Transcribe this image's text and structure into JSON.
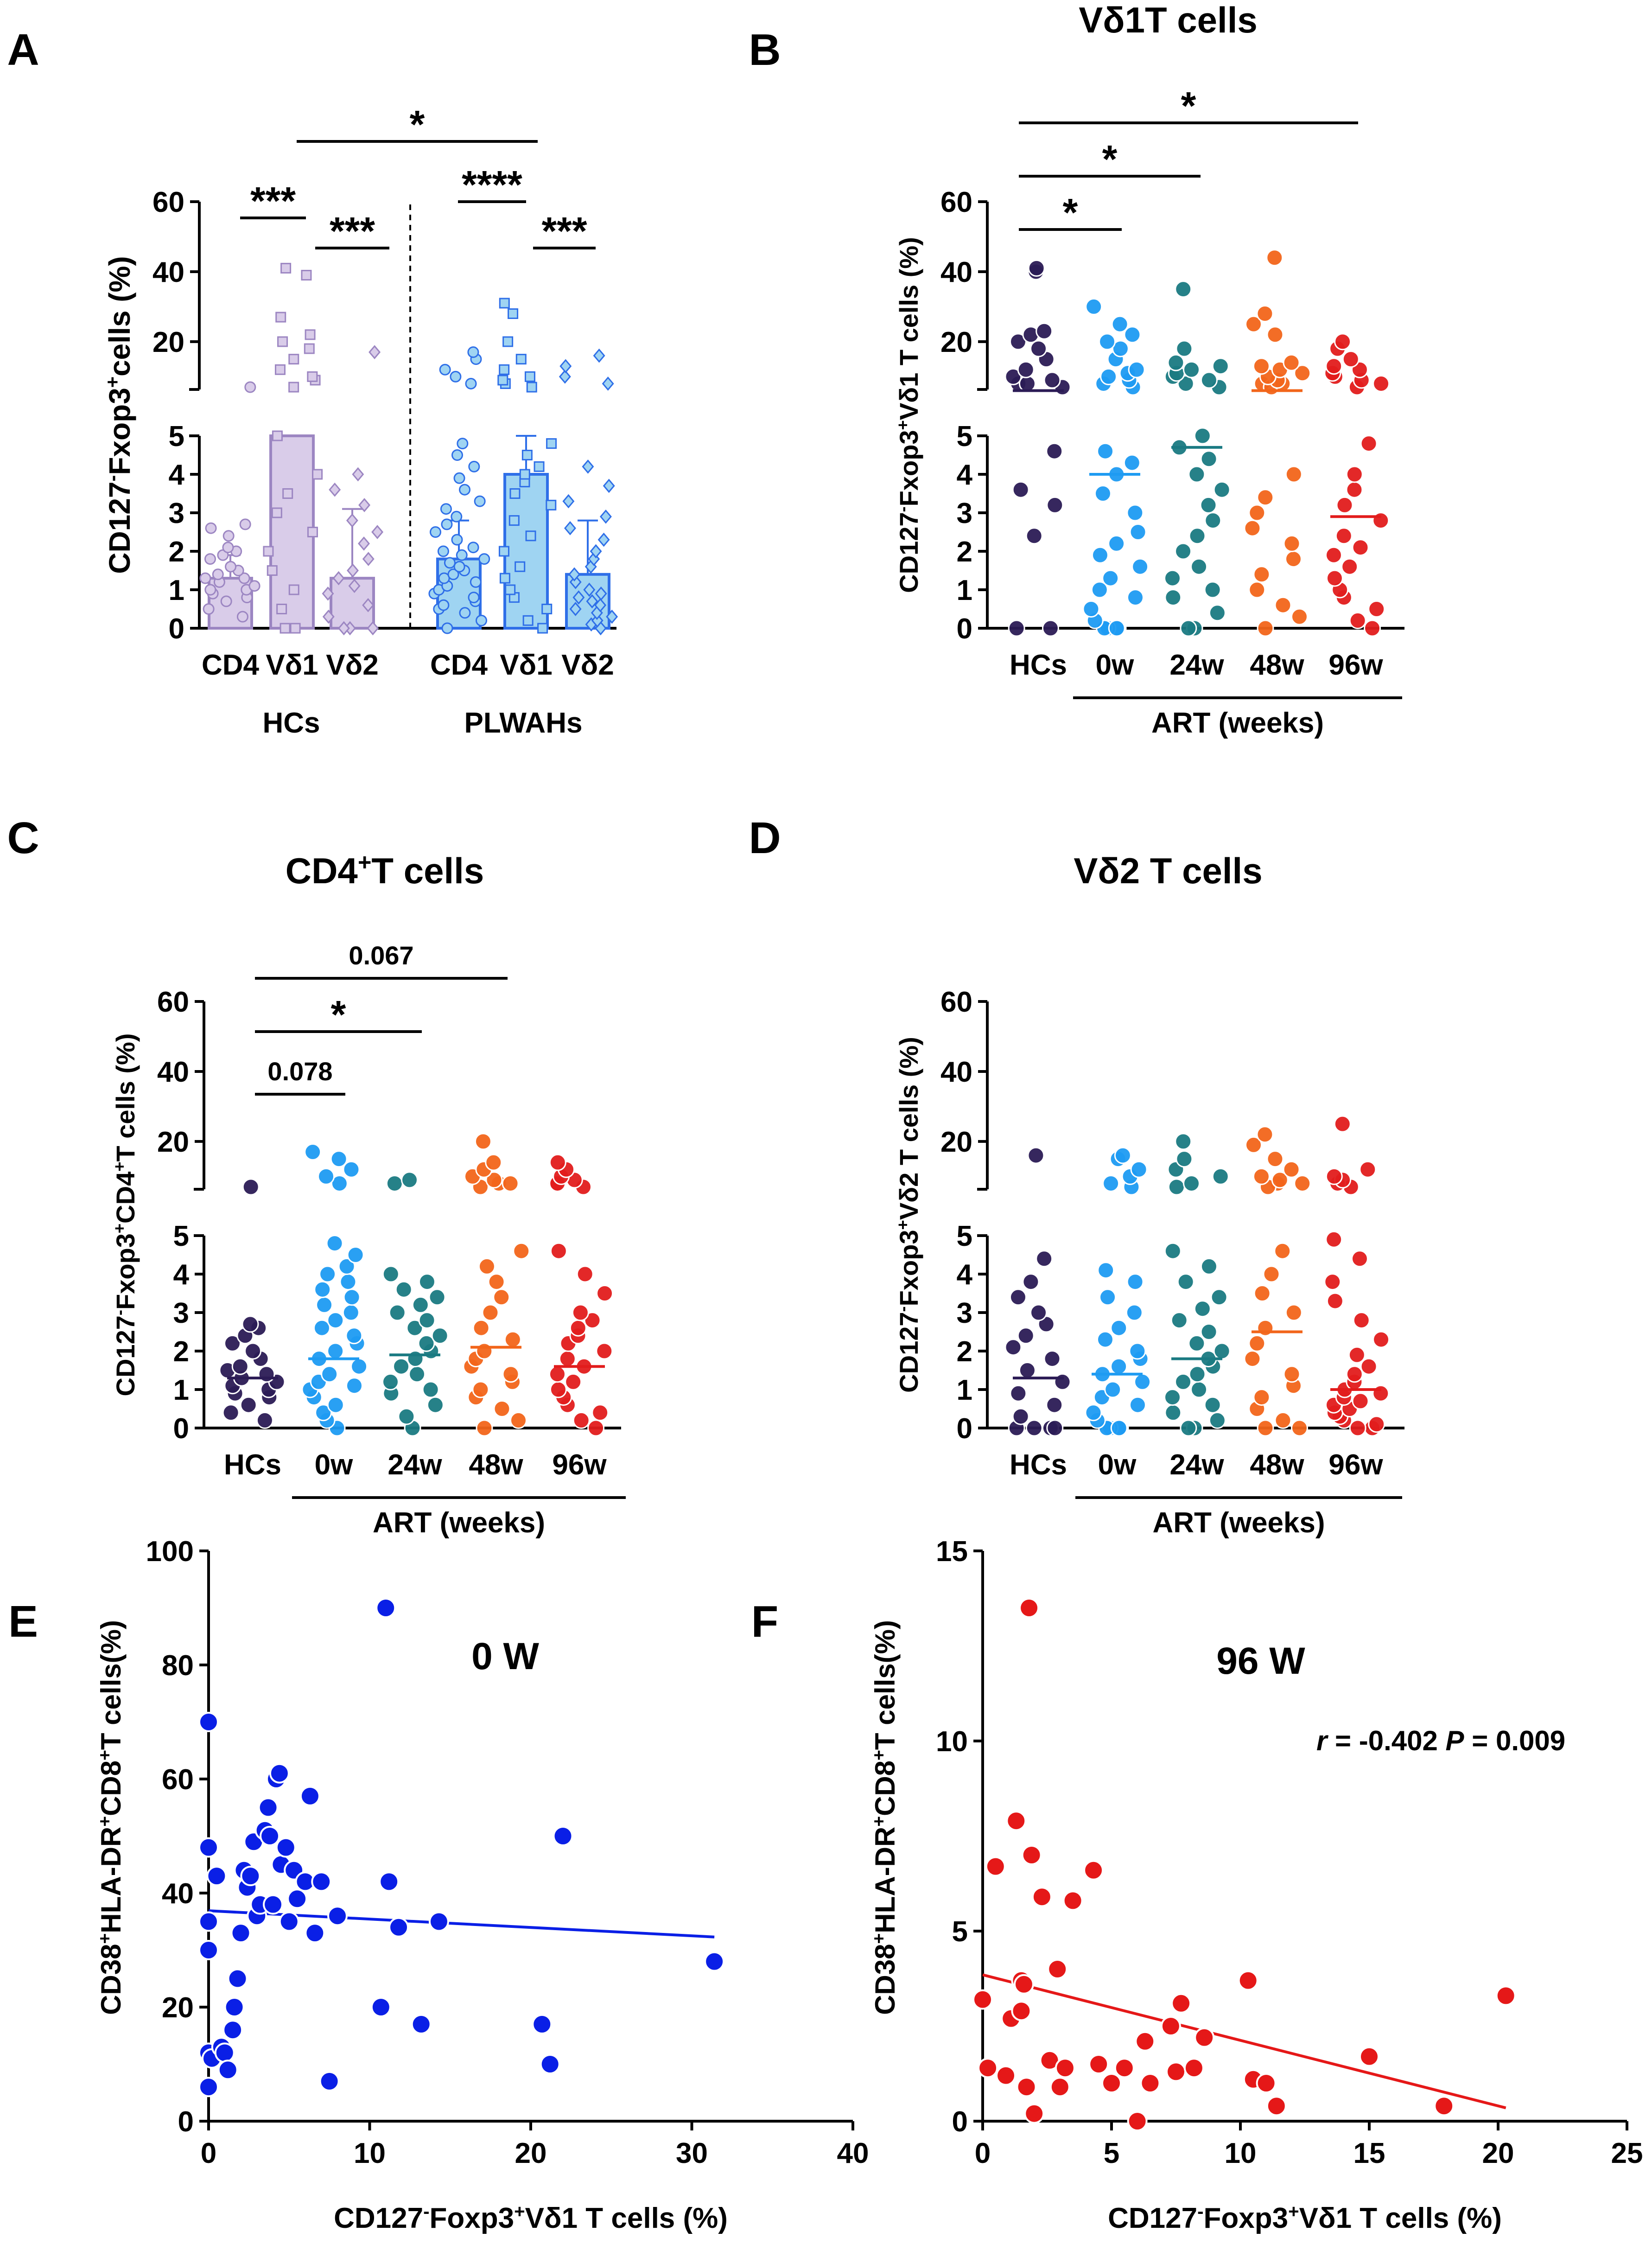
{
  "figure": {
    "labels": [
      "A",
      "B",
      "C",
      "D",
      "E",
      "F"
    ]
  },
  "chart_data": [
    {
      "id": "A",
      "type": "bar",
      "title": "",
      "ylabel": "CD127⁻Fxop3⁺cells (%)",
      "groups": [
        "HCs",
        "PLWAHs"
      ],
      "categories": [
        "CD4",
        "Vδ1",
        "Vδ2",
        "CD4",
        "Vδ1",
        "Vδ2"
      ],
      "values": [
        1.3,
        5.0,
        1.3,
        1.8,
        4.0,
        1.4
      ],
      "error_upper": [
        1.9,
        5.0,
        3.1,
        2.8,
        5.0,
        2.8
      ],
      "colors": [
        "#9c86c2",
        "#9c86c2",
        "#9c86c2",
        "#2f6fe8",
        "#2f6fe8",
        "#2f6fe8"
      ],
      "fills": [
        "#d9cce9",
        "#d9cce9",
        "#d9cce9",
        "#9fd4f2",
        "#9fd4f2",
        "#9fd4f2"
      ],
      "points": [
        [
          0.3,
          0.5,
          0.7,
          0.8,
          0.9,
          1.0,
          1.0,
          1.1,
          1.2,
          1.3,
          1.3,
          1.4,
          1.5,
          1.6,
          1.8,
          1.9,
          2.0,
          2.1,
          2.4,
          2.6,
          2.7,
          7
        ],
        [
          0,
          0,
          0.5,
          1.0,
          1.5,
          2.0,
          2.5,
          3.0,
          3.5,
          4.0,
          5.0,
          7,
          9,
          10,
          12,
          15,
          18,
          20,
          22,
          27,
          39,
          41
        ],
        [
          0,
          0,
          0,
          0.3,
          0.6,
          0.9,
          1.1,
          1.3,
          1.5,
          1.8,
          2.2,
          2.5,
          2.8,
          3.2,
          3.6,
          4.0,
          17
        ],
        [
          0,
          0.2,
          0.4,
          0.5,
          0.6,
          0.7,
          0.8,
          0.9,
          1.0,
          1.1,
          1.2,
          1.3,
          1.4,
          1.5,
          1.6,
          1.7,
          1.8,
          1.9,
          2.0,
          2.1,
          2.3,
          2.5,
          2.7,
          2.9,
          3.1,
          3.3,
          3.6,
          3.9,
          4.2,
          4.5,
          4.8,
          8,
          10,
          12,
          15,
          17
        ],
        [
          0,
          0.2,
          0.5,
          0.8,
          1.0,
          1.3,
          1.6,
          2.0,
          2.4,
          2.8,
          3.2,
          3.5,
          3.8,
          4.0,
          4.2,
          4.5,
          4.8,
          7,
          8,
          9,
          10,
          12,
          15,
          20,
          28,
          31
        ],
        [
          0,
          0.1,
          0.2,
          0.3,
          0.4,
          0.5,
          0.6,
          0.7,
          0.8,
          0.9,
          1.0,
          1.2,
          1.4,
          1.6,
          1.8,
          2.0,
          2.3,
          2.6,
          2.9,
          3.3,
          3.7,
          4.2,
          8,
          10,
          13,
          16
        ]
      ],
      "significance": [
        {
          "from": 0,
          "to": 1,
          "label": "***"
        },
        {
          "from": 1,
          "to": 2,
          "label": "***"
        },
        {
          "from": 3,
          "to": 4,
          "label": "****"
        },
        {
          "from": 4,
          "to": 5,
          "label": "***"
        },
        {
          "from": 1,
          "to": 4,
          "label": "*"
        }
      ],
      "yticks_lower": [
        "0",
        "1",
        "2",
        "3",
        "4",
        "5"
      ],
      "yticks_upper": [
        "20",
        "40",
        "60"
      ],
      "ylim": [
        0,
        60
      ],
      "axis_break": [
        5,
        7
      ]
    },
    {
      "id": "B",
      "type": "scatter",
      "title": "Vδ1T cells",
      "ylabel": "CD127⁻Fxop3⁺Vδ1 T cells (%)",
      "categories": [
        "HCs",
        "0w",
        "24w",
        "48w",
        "96w"
      ],
      "bracket_label": "ART (weeks)",
      "medians": [
        6.0,
        4.0,
        4.7,
        6.0,
        2.9
      ],
      "colors": [
        "#2b1b55",
        "#1e9bf2",
        "#1a7a82",
        "#f2651a",
        "#e21c1c"
      ],
      "points": [
        [
          0,
          0,
          2.4,
          3.2,
          3.6,
          4.6,
          6,
          7,
          8,
          9,
          10,
          12,
          15,
          18,
          20,
          22,
          23,
          40,
          41
        ],
        [
          0,
          0,
          0,
          0,
          0.2,
          0.5,
          0.8,
          1.0,
          1.3,
          1.6,
          1.9,
          2.2,
          2.5,
          3.0,
          3.5,
          4.0,
          4.3,
          4.6,
          7,
          8,
          9,
          10,
          11,
          12,
          15,
          18,
          20,
          22,
          25,
          30
        ],
        [
          0,
          0,
          0.4,
          0.8,
          1.0,
          1.3,
          1.6,
          2.0,
          2.4,
          2.8,
          3.2,
          3.6,
          4.0,
          4.4,
          4.7,
          5.0,
          7,
          8,
          9,
          10,
          11,
          12,
          13,
          14,
          18,
          35
        ],
        [
          0,
          0.3,
          0.6,
          1.0,
          1.4,
          1.8,
          2.2,
          2.6,
          3.0,
          3.4,
          4.0,
          6,
          7,
          8,
          9,
          10,
          11,
          12,
          13,
          14,
          22,
          25,
          28,
          44
        ],
        [
          0,
          0.2,
          0.5,
          0.8,
          1.0,
          1.3,
          1.6,
          1.9,
          2.1,
          2.4,
          2.8,
          3.2,
          3.6,
          4.0,
          4.8,
          7,
          8,
          9,
          10,
          11,
          12,
          13,
          15,
          18,
          20
        ]
      ],
      "significance": [
        {
          "from": 0,
          "to": 1,
          "label": "*"
        },
        {
          "from": 0,
          "to": 2,
          "label": "*"
        },
        {
          "from": 0,
          "to": 4,
          "label": "*"
        }
      ],
      "yticks_lower": [
        "0",
        "1",
        "2",
        "3",
        "4",
        "5"
      ],
      "yticks_upper": [
        "20",
        "40",
        "60"
      ],
      "ylim": [
        0,
        60
      ],
      "axis_break": [
        5,
        7
      ]
    },
    {
      "id": "C",
      "type": "scatter",
      "title": "CD4⁺T cells",
      "ylabel": "CD127⁻Fxop3⁺CD4⁺T cells (%)",
      "categories": [
        "HCs",
        "0w",
        "24w",
        "48w",
        "96w"
      ],
      "bracket_label": "ART (weeks)",
      "medians": [
        1.3,
        1.8,
        1.9,
        2.1,
        1.6
      ],
      "colors": [
        "#2b1b55",
        "#1e9bf2",
        "#1a7a82",
        "#f2651a",
        "#e21c1c"
      ],
      "points": [
        [
          0.2,
          0.4,
          0.6,
          0.8,
          0.9,
          1.0,
          1.1,
          1.2,
          1.3,
          1.4,
          1.5,
          1.6,
          1.8,
          2.0,
          2.2,
          2.4,
          2.6,
          2.7,
          7
        ],
        [
          0,
          0.2,
          0.4,
          0.6,
          0.8,
          1.0,
          1.1,
          1.2,
          1.4,
          1.6,
          1.8,
          2.0,
          2.2,
          2.4,
          2.6,
          2.8,
          3.0,
          3.2,
          3.4,
          3.6,
          3.8,
          4.0,
          4.2,
          4.5,
          4.8,
          8,
          10,
          12,
          15,
          17
        ],
        [
          0,
          0.3,
          0.6,
          0.9,
          1.0,
          1.2,
          1.4,
          1.6,
          1.8,
          2.0,
          2.2,
          2.4,
          2.6,
          2.8,
          3.0,
          3.2,
          3.4,
          3.6,
          3.8,
          4.0,
          8,
          9
        ],
        [
          0,
          0.2,
          0.5,
          0.8,
          1.0,
          1.2,
          1.4,
          1.6,
          1.8,
          2.0,
          2.3,
          2.6,
          3.0,
          3.4,
          3.8,
          4.2,
          4.6,
          6,
          7,
          8,
          9,
          10,
          12,
          14,
          20
        ],
        [
          0,
          0.2,
          0.4,
          0.6,
          0.8,
          1.0,
          1.2,
          1.4,
          1.6,
          1.8,
          2.0,
          2.2,
          2.4,
          2.6,
          2.8,
          3.0,
          3.5,
          4.0,
          4.6,
          6,
          7,
          8,
          9,
          10,
          12,
          14
        ]
      ],
      "significance": [
        {
          "from": 0,
          "to": 1,
          "label": "0.078"
        },
        {
          "from": 0,
          "to": 2,
          "label": "*"
        },
        {
          "from": 0,
          "to": 3,
          "label": "0.067"
        }
      ],
      "yticks_lower": [
        "0",
        "1",
        "2",
        "3",
        "4",
        "5"
      ],
      "yticks_upper": [
        "20",
        "40",
        "60"
      ],
      "ylim": [
        0,
        60
      ],
      "axis_break": [
        5,
        7
      ]
    },
    {
      "id": "D",
      "type": "scatter",
      "title": "Vδ2 T cells",
      "ylabel": "CD127⁻Fxop3⁺Vδ2 T cells (%)",
      "categories": [
        "HCs",
        "0w",
        "24w",
        "48w",
        "96w"
      ],
      "bracket_label": "ART (weeks)",
      "medians": [
        1.3,
        1.4,
        1.8,
        2.5,
        1.0
      ],
      "colors": [
        "#2b1b55",
        "#1e9bf2",
        "#1a7a82",
        "#f2651a",
        "#e21c1c"
      ],
      "points": [
        [
          0,
          0,
          0,
          0,
          0.3,
          0.6,
          0.9,
          1.2,
          1.5,
          1.8,
          2.1,
          2.4,
          2.7,
          3.0,
          3.4,
          3.8,
          4.4,
          16
        ],
        [
          0,
          0,
          0,
          0,
          0.2,
          0.4,
          0.6,
          0.8,
          1.0,
          1.2,
          1.4,
          1.6,
          1.8,
          2.0,
          2.3,
          2.6,
          3.0,
          3.4,
          3.8,
          4.1,
          7,
          8,
          10,
          12,
          15,
          16
        ],
        [
          0,
          0,
          0.2,
          0.4,
          0.6,
          0.8,
          1.0,
          1.2,
          1.4,
          1.6,
          1.8,
          2.0,
          2.2,
          2.5,
          2.8,
          3.1,
          3.4,
          3.8,
          4.2,
          4.6,
          7,
          8,
          10,
          12,
          15,
          20
        ],
        [
          0,
          0,
          0.2,
          0.5,
          0.8,
          1.1,
          1.4,
          1.8,
          2.2,
          2.6,
          3.0,
          3.5,
          4.0,
          4.6,
          6,
          7,
          8,
          9,
          10,
          12,
          15,
          19,
          22
        ],
        [
          0,
          0,
          0.1,
          0.2,
          0.3,
          0.4,
          0.5,
          0.6,
          0.7,
          0.8,
          0.9,
          1.0,
          1.2,
          1.4,
          1.6,
          1.9,
          2.3,
          2.8,
          3.3,
          3.8,
          4.4,
          4.9,
          7,
          8,
          9,
          10,
          12,
          25
        ]
      ],
      "significance": [],
      "yticks_lower": [
        "0",
        "1",
        "2",
        "3",
        "4",
        "5"
      ],
      "yticks_upper": [
        "20",
        "40",
        "60"
      ],
      "ylim": [
        0,
        60
      ],
      "axis_break": [
        5,
        7
      ]
    },
    {
      "id": "E",
      "type": "scatter",
      "title": "0 W",
      "xlabel": "CD127⁻Foxp3⁺Vδ1 T cells (%)",
      "ylabel": "CD38⁺HLA-DR⁺CD8⁺T cells(%)",
      "color": "#0a1fe6",
      "xlim": [
        0,
        40
      ],
      "ylim": [
        0,
        100
      ],
      "xticks": [
        "0",
        "10",
        "20",
        "30",
        "40"
      ],
      "yticks": [
        "0",
        "20",
        "40",
        "60",
        "80",
        "100"
      ],
      "x": [
        0,
        0,
        0,
        0,
        0,
        0,
        0.2,
        0.5,
        0.8,
        1.0,
        1.2,
        1.5,
        1.6,
        1.8,
        2.0,
        2.2,
        2.4,
        2.6,
        2.8,
        3.0,
        3.2,
        3.5,
        3.7,
        3.8,
        4.0,
        4.2,
        4.4,
        4.5,
        4.8,
        5.0,
        5.3,
        5.5,
        6.0,
        6.3,
        6.6,
        7.0,
        7.5,
        8.0,
        10.7,
        11.0,
        11.2,
        11.8,
        13.2,
        14.3,
        20.7,
        21.2,
        22.0,
        31.4
      ],
      "y": [
        70,
        48,
        35,
        30,
        12,
        6,
        11,
        43,
        13,
        12,
        9,
        16,
        20,
        25,
        33,
        44,
        41,
        43,
        49,
        36,
        38,
        51,
        55,
        50,
        38,
        60,
        61,
        45,
        48,
        35,
        44,
        39,
        42,
        57,
        33,
        42,
        7,
        36,
        20,
        90,
        42,
        34,
        17,
        35,
        17,
        10,
        50,
        28
      ],
      "fit": {
        "x0": 0,
        "y0": 36.9,
        "x1": 31.4,
        "y1": 32.3
      }
    },
    {
      "id": "F",
      "type": "scatter",
      "title": "96 W",
      "annotation_r": "r",
      "annotation_r_value": " = -0.402",
      "annotation_p": "P",
      "annotation_p_value": " = 0.009",
      "xlabel": "CD127⁻Foxp3⁺Vδ1 T cells (%)",
      "ylabel": "CD38⁺HLA-DR⁺CD8⁺T cells(%)",
      "color": "#e51818",
      "xlim": [
        0,
        25
      ],
      "ylim": [
        0,
        15
      ],
      "xticks": [
        "0",
        "5",
        "10",
        "15",
        "20",
        "25"
      ],
      "yticks": [
        "0",
        "5",
        "10",
        "15"
      ],
      "x": [
        0,
        0.2,
        0.5,
        0.9,
        1.1,
        1.3,
        1.5,
        1.5,
        1.6,
        1.7,
        1.8,
        1.9,
        2.0,
        2.3,
        2.6,
        2.9,
        3.0,
        3.2,
        3.5,
        4.3,
        4.5,
        5.0,
        5.5,
        6.0,
        6.3,
        6.5,
        7.3,
        7.5,
        7.7,
        8.2,
        8.6,
        10.3,
        10.5,
        11.0,
        11.4,
        15.0,
        17.9,
        20.3
      ],
      "y": [
        3.2,
        1.4,
        6.7,
        1.2,
        2.7,
        7.9,
        3.7,
        2.9,
        3.6,
        0.9,
        13.5,
        7.0,
        0.2,
        5.9,
        1.6,
        4.0,
        0.9,
        1.4,
        5.8,
        6.6,
        1.5,
        1.0,
        1.4,
        0.0,
        2.1,
        1.0,
        2.5,
        1.3,
        3.1,
        1.4,
        2.2,
        3.7,
        1.1,
        1.0,
        0.4,
        1.7,
        0.4,
        3.3
      ],
      "fit": {
        "x0": 0,
        "y0": 3.85,
        "x1": 20.3,
        "y1": 0.35
      }
    }
  ]
}
